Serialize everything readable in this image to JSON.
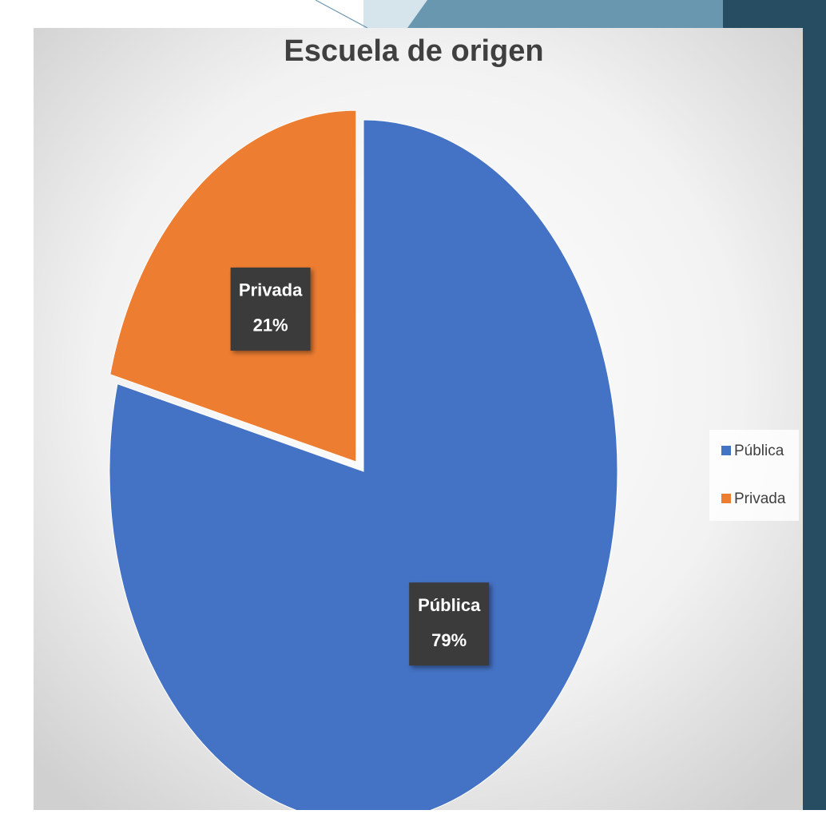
{
  "chart_data": {
    "type": "pie",
    "title": "Escuela de  origen",
    "categories": [
      "Pública",
      "Privada"
    ],
    "values": [
      79,
      21
    ],
    "value_labels": [
      "79%",
      "21%"
    ],
    "colors": [
      "#4472c4",
      "#ed7d31"
    ],
    "legend": "right"
  }
}
